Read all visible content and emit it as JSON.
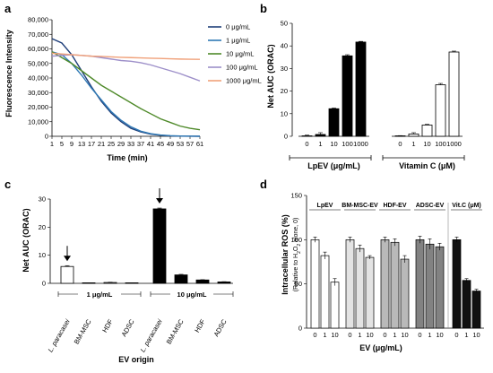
{
  "panels": [
    {
      "id": "a",
      "letter": "a"
    },
    {
      "id": "b",
      "letter": "b"
    },
    {
      "id": "c",
      "letter": "c"
    },
    {
      "id": "d",
      "letter": "d"
    }
  ],
  "chart_data": [
    {
      "panel": "a",
      "type": "line",
      "xlabel": "Time (min)",
      "ylabel": "Fluorescence Intensity",
      "xlim": [
        1,
        61
      ],
      "ylim": [
        0,
        80000
      ],
      "xticks": [
        "1",
        "5",
        "9",
        "13",
        "17",
        "21",
        "25",
        "29",
        "33",
        "37",
        "41",
        "45",
        "49",
        "53",
        "57",
        "61"
      ],
      "yticks": [
        "0",
        "10,000",
        "20,000",
        "30,000",
        "40,000",
        "50,000",
        "60,000",
        "70,000",
        "80,000"
      ],
      "x": [
        1,
        5,
        9,
        13,
        17,
        21,
        25,
        29,
        33,
        37,
        41,
        45,
        49,
        53,
        57,
        61
      ],
      "legend_position": "top-right",
      "series": [
        {
          "name": "0 μg/mL",
          "color": "#1f3f7a",
          "values": [
            67000,
            64000,
            56000,
            45000,
            34000,
            24000,
            16000,
            10000,
            5500,
            3000,
            1500,
            700,
            300,
            100,
            50,
            0
          ]
        },
        {
          "name": "1 μg/mL",
          "color": "#2f79b5",
          "values": [
            58000,
            56000,
            50000,
            42000,
            33000,
            25000,
            17000,
            11000,
            6500,
            3500,
            1800,
            900,
            400,
            200,
            100,
            50
          ]
        },
        {
          "name": "10 μg/mL",
          "color": "#4f8a2a",
          "values": [
            58000,
            54000,
            50000,
            45000,
            40000,
            35000,
            31000,
            27000,
            23000,
            19000,
            15500,
            12000,
            9500,
            7000,
            5500,
            4500
          ]
        },
        {
          "name": "100 μg/mL",
          "color": "#9d8fc9",
          "values": [
            55000,
            55500,
            56000,
            55500,
            55000,
            54000,
            53000,
            52000,
            51500,
            50500,
            49000,
            47000,
            45000,
            43000,
            40500,
            38000
          ]
        },
        {
          "name": "1000 μg/mL",
          "color": "#f0a17a",
          "values": [
            57000,
            56500,
            56000,
            55500,
            55000,
            54800,
            54500,
            54200,
            54000,
            53800,
            53600,
            53400,
            53200,
            53000,
            52900,
            52800
          ]
        }
      ]
    },
    {
      "panel": "b",
      "type": "bar",
      "ylabel": "Net AUC (ORAC)",
      "ylim": [
        0,
        50
      ],
      "yticks": [
        "0",
        "10",
        "20",
        "30",
        "40",
        "50"
      ],
      "groups": [
        {
          "label": "LpEV (μg/mL)",
          "fill": "#000000",
          "categories": [
            "0",
            "1",
            "10",
            "100",
            "1000"
          ],
          "values": [
            0.2,
            0.8,
            12.2,
            35.6,
            41.7
          ],
          "errors": [
            0.3,
            0.8,
            0.3,
            0.5,
            0.3
          ]
        },
        {
          "label": "Vitamin C (μM)",
          "fill": "#ffffff",
          "categories": [
            "0",
            "1",
            "10",
            "100",
            "1000"
          ],
          "values": [
            0.1,
            1.0,
            5.0,
            22.8,
            37.3
          ],
          "errors": [
            0.2,
            0.6,
            0.3,
            0.6,
            0.4
          ]
        }
      ]
    },
    {
      "panel": "c",
      "type": "bar",
      "ylabel": "Net AUC (ORAC)",
      "xlabel": "EV origin",
      "ylim": [
        0,
        30
      ],
      "yticks": [
        "0",
        "10",
        "20",
        "30"
      ],
      "categories": [
        "L. paracasei",
        "BM-MSC",
        "HDF",
        "ADSC",
        "L. paracasei",
        "BM-MSC",
        "HDF",
        "ADSC"
      ],
      "values": [
        6.0,
        0.05,
        0.3,
        0.05,
        26.5,
        3.0,
        1.2,
        0.5
      ],
      "errors": [
        0.3,
        0.05,
        0.1,
        0.05,
        0.3,
        0.2,
        0.1,
        0.1
      ],
      "fills": [
        "#ffffff",
        "#ffffff",
        "#ffffff",
        "#ffffff",
        "#000000",
        "#000000",
        "#000000",
        "#000000"
      ],
      "group_labels": [
        "1 μg/mL",
        "10 μg/mL"
      ],
      "annotations": [
        "arrow over 1 μg/mL L. paracasei",
        "arrow over 10 μg/mL L. paracasei"
      ]
    },
    {
      "panel": "d",
      "type": "bar",
      "ylabel": "Intracellular ROS (%)",
      "ylabel_sub": "(Relative to H",
      "ylabel_sub_2": "O",
      "ylabel_sub_3": " alone, 0)",
      "xlabel": "EV (μg/mL)",
      "ylim": [
        0,
        150
      ],
      "yticks": [
        "0",
        "50",
        "100",
        "150"
      ],
      "groups": [
        {
          "label": "LpEV",
          "fill": "#ffffff",
          "categories": [
            "0",
            "1",
            "10"
          ],
          "values": [
            100,
            82,
            52
          ],
          "errors": [
            3,
            4,
            4
          ]
        },
        {
          "label": "BM-MSC-EV",
          "fill": "#e3e3e3",
          "categories": [
            "0",
            "1",
            "10"
          ],
          "values": [
            100,
            90,
            80
          ],
          "errors": [
            3,
            4,
            2
          ]
        },
        {
          "label": "HDF-EV",
          "fill": "#b9b9b9",
          "categories": [
            "0",
            "1",
            "10"
          ],
          "values": [
            100,
            97,
            78
          ],
          "errors": [
            3,
            4,
            4
          ]
        },
        {
          "label": "ADSC-EV",
          "fill": "#828282",
          "categories": [
            "0",
            "1",
            "10"
          ],
          "values": [
            100,
            95,
            92
          ],
          "errors": [
            4,
            6,
            4
          ]
        },
        {
          "label": "Vit.C (μM)",
          "fill": "#111111",
          "categories": [
            "0",
            "1",
            "10"
          ],
          "values": [
            100,
            54,
            42
          ],
          "errors": [
            3,
            2,
            2
          ]
        }
      ]
    }
  ]
}
